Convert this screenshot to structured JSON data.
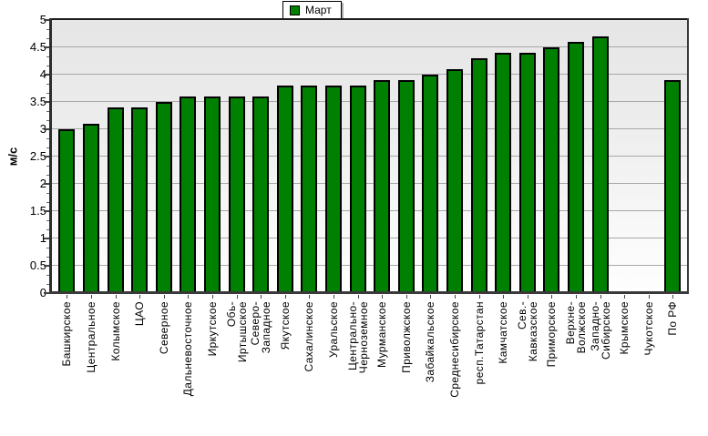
{
  "chart_data": {
    "type": "bar",
    "title": "",
    "ylabel": "м/с",
    "xlabel": "",
    "ylim": [
      0,
      5
    ],
    "ytick_step": 0.5,
    "ytick_labels": [
      "0",
      "0.5",
      "1",
      "1.5",
      "2",
      "2.5",
      "3",
      "3.5",
      "4",
      "4.5",
      "5"
    ],
    "grid": true,
    "legend_position": "top-center",
    "legend": [
      {
        "label": "Март",
        "color": "#008000"
      }
    ],
    "categories": [
      "Башкирское",
      "Центральное",
      "Колымское",
      "ЦАО",
      "Северное",
      "Дальневосточное",
      "Иркутское",
      "Обь-\nИртышское",
      "Северо-\nЗападное",
      "Якутское",
      "Сахалинское",
      "Уральское",
      "Центрально-\nЧерноземное",
      "Мурманское",
      "Приволжское",
      "Забайкальское",
      "Среднесибирское",
      "респ.Татарстан",
      "Камчатское",
      "Сев.-\nКавказское",
      "Приморское",
      "Верхне-\nВолжское",
      "Западно-\nСибирское",
      "Крымское",
      "Чукотское",
      "По РФ"
    ],
    "series": [
      {
        "name": "Март",
        "values": [
          3.0,
          3.1,
          3.4,
          3.4,
          3.5,
          3.6,
          3.6,
          3.6,
          3.6,
          3.8,
          3.8,
          3.8,
          3.8,
          3.9,
          3.9,
          4.0,
          4.1,
          4.3,
          4.4,
          4.4,
          4.5,
          4.6,
          4.7,
          0,
          0,
          3.9
        ]
      }
    ],
    "colors": {
      "bar_fill": "#008000",
      "bar_border": "#000000",
      "gridline": "#a8a8a8",
      "axis": "#2e2e2e",
      "plot_bg_top": "#e6e6e6",
      "plot_bg_bottom": "#fefefe"
    }
  }
}
